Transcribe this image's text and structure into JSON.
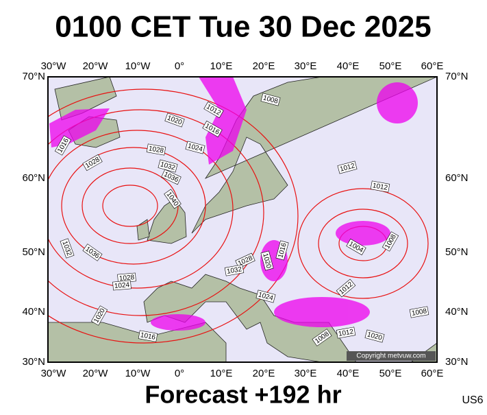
{
  "title": "0100 CET Tue 30 Dec 2025",
  "map": {
    "lon_labels": [
      "30°W",
      "20°W",
      "10°W",
      "0°",
      "10°E",
      "20°E",
      "30°E",
      "40°E",
      "50°E",
      "60°E"
    ],
    "lat_labels": [
      "70°N",
      "60°N",
      "50°N",
      "40°N",
      "30°N"
    ],
    "isobar_labels": [
      "1012",
      "1016",
      "1020",
      "1024",
      "1028",
      "1032",
      "1036",
      "1040",
      "1016",
      "1028",
      "1032",
      "1036",
      "1028",
      "1024",
      "1020",
      "1016",
      "1008",
      "1012",
      "1012",
      "1004",
      "1008",
      "1016",
      "1028",
      "1032",
      "1020",
      "1024",
      "1012",
      "1008",
      "1012",
      "1020",
      "1008"
    ]
  },
  "copyright": "Copyright metvuw.com",
  "footer": "Forecast +192 hr",
  "code": "US6"
}
